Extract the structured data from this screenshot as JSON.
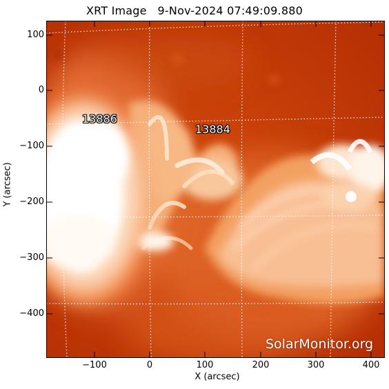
{
  "title": "XRT Image   9-Nov-2024 07:49:09.880",
  "axes": {
    "x_label": "X (arcsec)",
    "y_label": "Y (arcsec)",
    "x_ticks": [
      "−100",
      "0",
      "100",
      "200",
      "300",
      "400"
    ],
    "y_ticks": [
      "100",
      "0",
      "−100",
      "−200",
      "−300",
      "−400"
    ]
  },
  "active_regions": [
    {
      "number": "13886"
    },
    {
      "number": "13884"
    }
  ],
  "watermark": "SolarMonitor.org",
  "colors": {
    "background": "#c43a06",
    "bright": "#fff8f0",
    "mid": "#f08a3a",
    "grid": "#ffffff"
  }
}
